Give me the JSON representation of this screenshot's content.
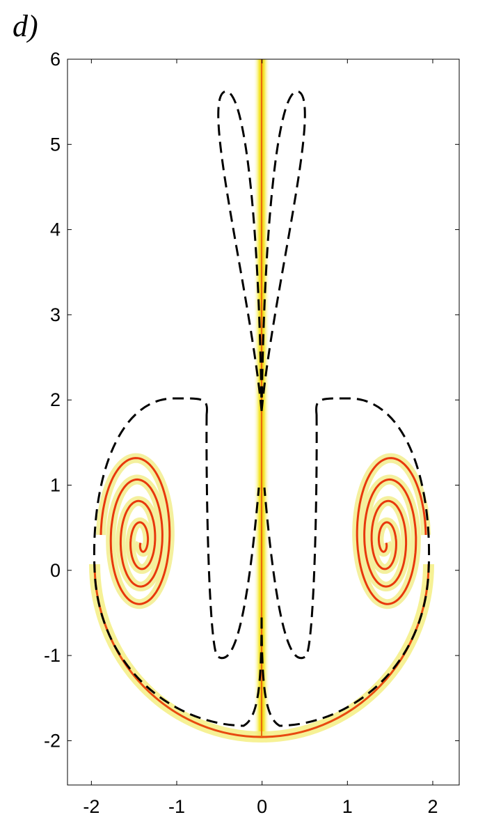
{
  "chart_data": {
    "type": "field",
    "title": "d)",
    "xlim": [
      -2.28,
      2.31
    ],
    "ylim": [
      -2.52,
      6
    ],
    "xticks": [
      -2,
      -1,
      0,
      1,
      2
    ],
    "yticks": [
      -2,
      -1,
      0,
      1,
      2,
      3,
      4,
      5,
      6
    ]
  }
}
